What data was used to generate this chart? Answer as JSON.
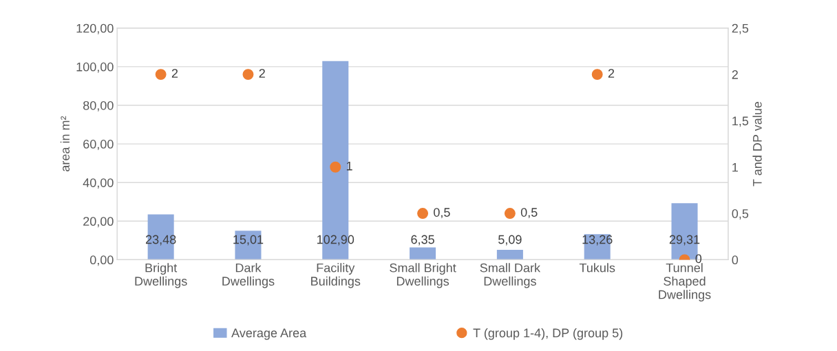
{
  "chart_data": {
    "type": "bar",
    "categories": [
      "Bright\nDwellings",
      "Dark\nDwellings",
      "Facility\nBuildings",
      "Small Bright\nDwellings",
      "Small Dark\nDwellings",
      "Tukuls",
      "Tunnel\nShaped\nDwellings"
    ],
    "series": [
      {
        "name": "Average Area",
        "color": "#8faadc",
        "values": [
          23.48,
          15.01,
          102.9,
          6.35,
          5.09,
          13.26,
          29.31
        ],
        "value_labels": [
          "23,48",
          "15,01",
          "102,90",
          "6,35",
          "5,09",
          "13,26",
          "29,31"
        ]
      },
      {
        "name": "T (group 1-4), DP (group 5)",
        "type": "scatter",
        "axis": "y2",
        "color": "#ed7d31",
        "x": [
          "Bright\nDwellings",
          "Dark\nDwellings",
          "Facility\nBuildings",
          "Small Bright\nDwellings",
          "Small Dark\nDwellings",
          "Tukuls",
          "Tunnel\nShaped\nDwellings"
        ],
        "values": [
          2,
          2,
          1,
          0.5,
          0.5,
          2,
          0
        ],
        "value_labels": [
          "2",
          "2",
          "1",
          "0,5",
          "0,5",
          "2",
          "0"
        ]
      }
    ],
    "ylabel": "area in m²",
    "y2label": "T and DP value",
    "ylim": [
      0,
      120
    ],
    "yticks": [
      {
        "value": 0,
        "label": "0,00"
      },
      {
        "value": 20,
        "label": "20,00"
      },
      {
        "value": 40,
        "label": "40,00"
      },
      {
        "value": 60,
        "label": "60,00"
      },
      {
        "value": 80,
        "label": "80,00"
      },
      {
        "value": 100,
        "label": "100,00"
      },
      {
        "value": 120,
        "label": "120,00"
      }
    ],
    "y2lim": [
      0,
      2.5
    ],
    "y2ticks": [
      0,
      {
        "value": 0.5,
        "label": "0,5"
      },
      1,
      {
        "value": 1.5,
        "label": "1,5"
      },
      2,
      {
        "value": 2.5,
        "label": "2,5"
      }
    ],
    "grid": "y",
    "legend": "bottom",
    "marker": "circle"
  }
}
